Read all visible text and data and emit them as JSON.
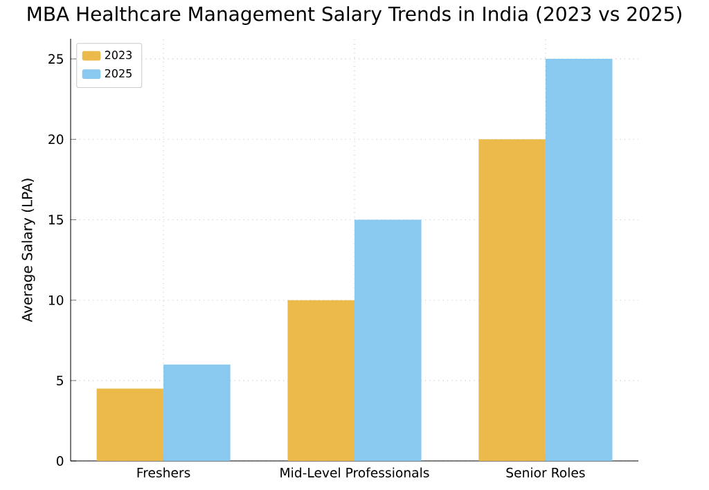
{
  "chart_data": {
    "type": "bar",
    "title": "MBA Healthcare Management Salary Trends in India (2023 vs 2025)",
    "ylabel": "Average Salary (LPA)",
    "categories": [
      "Freshers",
      "Mid-Level Professionals",
      "Senior Roles"
    ],
    "series": [
      {
        "name": "2023",
        "color": "#ecb94b",
        "values": [
          4.5,
          10,
          20
        ]
      },
      {
        "name": "2025",
        "color": "#89c9ef",
        "values": [
          6,
          15,
          25
        ]
      }
    ],
    "ylim": [
      0,
      26.25
    ],
    "yticks": [
      0,
      5,
      10,
      15,
      20,
      25
    ],
    "grid": true,
    "legend": "top left"
  }
}
